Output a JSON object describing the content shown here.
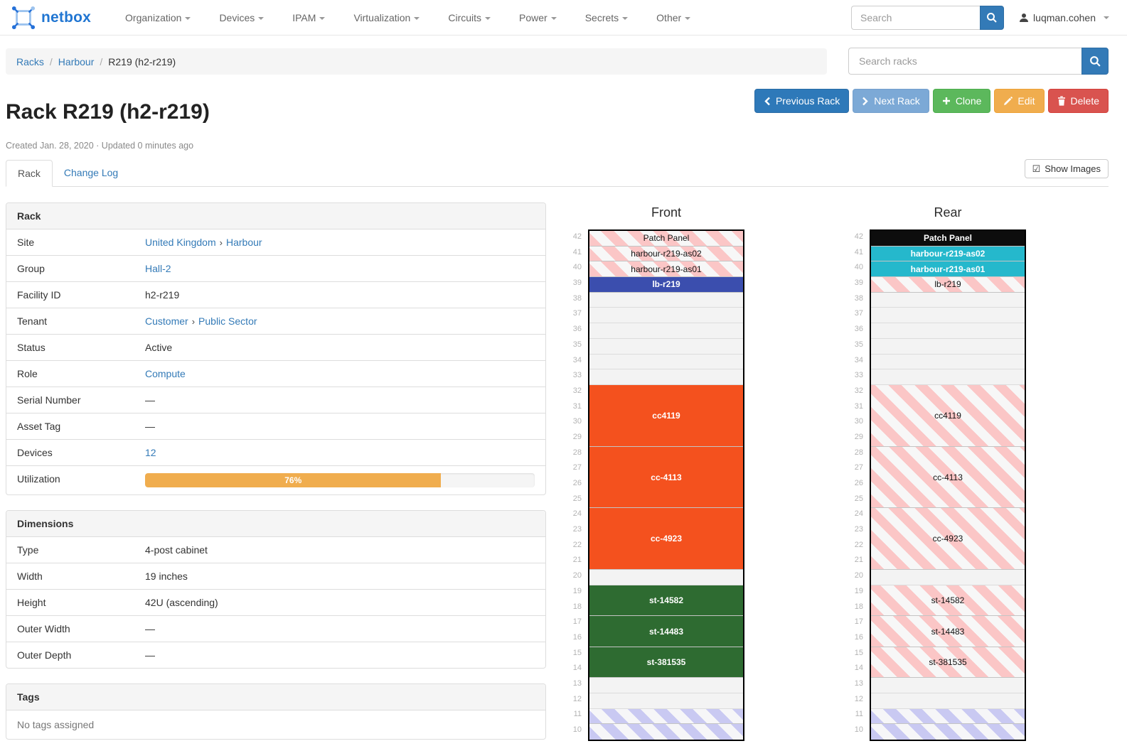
{
  "navbar": {
    "brand": "netbox",
    "items": [
      {
        "label": "Organization"
      },
      {
        "label": "Devices"
      },
      {
        "label": "IPAM"
      },
      {
        "label": "Virtualization"
      },
      {
        "label": "Circuits"
      },
      {
        "label": "Power"
      },
      {
        "label": "Secrets"
      },
      {
        "label": "Other"
      }
    ],
    "search_placeholder": "Search",
    "username": "luqman.cohen"
  },
  "breadcrumb": {
    "links": [
      "Racks",
      "Harbour"
    ],
    "current": "R219 (h2-r219)"
  },
  "rack_search_placeholder": "Search racks",
  "actions": {
    "previous_label": "Previous Rack",
    "next_label": "Next Rack",
    "clone_label": "Clone",
    "edit_label": "Edit",
    "delete_label": "Delete"
  },
  "page": {
    "title": "Rack R219 (h2-r219)",
    "meta": "Created Jan. 28, 2020 · Updated 0 minutes ago"
  },
  "tabs": [
    {
      "label": "Rack",
      "active": true
    },
    {
      "label": "Change Log",
      "active": false
    }
  ],
  "show_images_label": "Show Images",
  "colors": {
    "link_blue": "#337ab7",
    "utilization_orange": "#f0ad4e",
    "device_orange": "#f4511e",
    "device_green": "#2e6b31",
    "device_indigo": "#3b4eae",
    "device_cyan": "#25b8cc",
    "device_black": "#0d0d0d",
    "reserved_stripe": "#c9c9f2",
    "ghost_stripe": "#fbc6c6"
  },
  "panels": [
    {
      "title": "Rack",
      "rows": [
        {
          "label": "Site",
          "parts": [
            {
              "text": "United Kingdom",
              "link": true
            },
            {
              "text": "Harbour",
              "link": true
            }
          ]
        },
        {
          "label": "Group",
          "parts": [
            {
              "text": "Hall-2",
              "link": true
            }
          ]
        },
        {
          "label": "Facility ID",
          "parts": [
            {
              "text": "h2-r219",
              "link": false
            }
          ]
        },
        {
          "label": "Tenant",
          "parts": [
            {
              "text": "Customer",
              "link": true
            },
            {
              "text": "Public Sector",
              "link": true
            }
          ]
        },
        {
          "label": "Status",
          "parts": [
            {
              "text": "Active",
              "link": false
            }
          ]
        },
        {
          "label": "Role",
          "parts": [
            {
              "text": "Compute",
              "link": true
            }
          ]
        },
        {
          "label": "Serial Number",
          "parts": [
            {
              "text": "—",
              "link": false
            }
          ]
        },
        {
          "label": "Asset Tag",
          "parts": [
            {
              "text": "—",
              "link": false
            }
          ]
        },
        {
          "label": "Devices",
          "parts": [
            {
              "text": "12",
              "link": true
            }
          ]
        },
        {
          "label": "Utilization",
          "bar": {
            "percent": 76,
            "text": "76%",
            "color": "#f0ad4e"
          }
        }
      ]
    },
    {
      "title": "Dimensions",
      "rows": [
        {
          "label": "Type",
          "parts": [
            {
              "text": "4-post cabinet",
              "link": false
            }
          ]
        },
        {
          "label": "Width",
          "parts": [
            {
              "text": "19 inches",
              "link": false
            }
          ]
        },
        {
          "label": "Height",
          "parts": [
            {
              "text": "42U (ascending)",
              "link": false
            }
          ]
        },
        {
          "label": "Outer Width",
          "parts": [
            {
              "text": "—",
              "link": false
            }
          ]
        },
        {
          "label": "Outer Depth",
          "parts": [
            {
              "text": "—",
              "link": false
            }
          ]
        }
      ]
    },
    {
      "title": "Tags",
      "empty_text": "No tags assigned"
    }
  ],
  "elevations": {
    "top_unit": 42,
    "bottom_unit": 10,
    "front": {
      "title": "Front",
      "blocks": [
        {
          "span": 1,
          "label": "Patch Panel",
          "kind": "striped"
        },
        {
          "span": 1,
          "label": "harbour-r219-as02",
          "kind": "striped"
        },
        {
          "span": 1,
          "label": "harbour-r219-as01",
          "kind": "striped"
        },
        {
          "span": 1,
          "label": "lb-r219",
          "kind": "solid",
          "color": "#3b4eae"
        },
        {
          "span": 1,
          "kind": "empty"
        },
        {
          "span": 1,
          "kind": "empty"
        },
        {
          "span": 1,
          "kind": "empty"
        },
        {
          "span": 1,
          "kind": "empty"
        },
        {
          "span": 1,
          "kind": "empty"
        },
        {
          "span": 1,
          "kind": "empty"
        },
        {
          "span": 4,
          "label": "cc4119",
          "kind": "solid",
          "color": "#f4511e"
        },
        {
          "span": 4,
          "label": "cc-4113",
          "kind": "solid",
          "color": "#f4511e"
        },
        {
          "span": 4,
          "label": "cc-4923",
          "kind": "solid",
          "color": "#f4511e"
        },
        {
          "span": 1,
          "kind": "empty"
        },
        {
          "span": 2,
          "label": "st-14582",
          "kind": "solid",
          "color": "#2e6b31"
        },
        {
          "span": 2,
          "label": "st-14483",
          "kind": "solid",
          "color": "#2e6b31"
        },
        {
          "span": 2,
          "label": "st-381535",
          "kind": "solid",
          "color": "#2e6b31"
        },
        {
          "span": 1,
          "kind": "empty"
        },
        {
          "span": 1,
          "kind": "empty"
        },
        {
          "span": 1,
          "kind": "reserved"
        },
        {
          "span": 1,
          "kind": "reserved"
        }
      ]
    },
    "rear": {
      "title": "Rear",
      "blocks": [
        {
          "span": 1,
          "label": "Patch Panel",
          "kind": "solid",
          "color": "#0d0d0d"
        },
        {
          "span": 1,
          "label": "harbour-r219-as02",
          "kind": "solid",
          "color": "#25b8cc"
        },
        {
          "span": 1,
          "label": "harbour-r219-as01",
          "kind": "solid",
          "color": "#25b8cc"
        },
        {
          "span": 1,
          "label": "lb-r219",
          "kind": "striped"
        },
        {
          "span": 1,
          "kind": "empty"
        },
        {
          "span": 1,
          "kind": "empty"
        },
        {
          "span": 1,
          "kind": "empty"
        },
        {
          "span": 1,
          "kind": "empty"
        },
        {
          "span": 1,
          "kind": "empty"
        },
        {
          "span": 1,
          "kind": "empty"
        },
        {
          "span": 4,
          "label": "cc4119",
          "kind": "striped"
        },
        {
          "span": 4,
          "label": "cc-4113",
          "kind": "striped"
        },
        {
          "span": 4,
          "label": "cc-4923",
          "kind": "striped"
        },
        {
          "span": 1,
          "kind": "empty"
        },
        {
          "span": 2,
          "label": "st-14582",
          "kind": "striped"
        },
        {
          "span": 2,
          "label": "st-14483",
          "kind": "striped"
        },
        {
          "span": 2,
          "label": "st-381535",
          "kind": "striped"
        },
        {
          "span": 1,
          "kind": "empty"
        },
        {
          "span": 1,
          "kind": "empty"
        },
        {
          "span": 1,
          "kind": "reserved"
        },
        {
          "span": 1,
          "kind": "reserved"
        }
      ]
    }
  }
}
